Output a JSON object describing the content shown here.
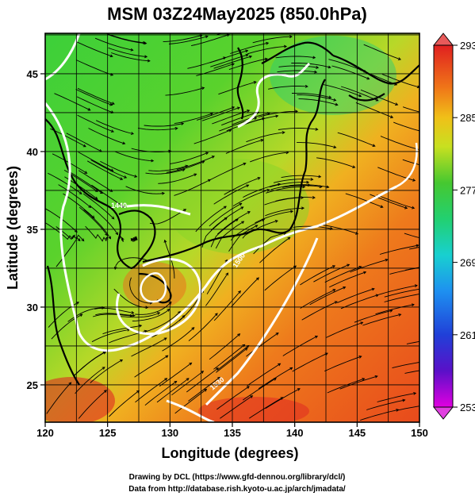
{
  "title": "MSM 03Z24May2025 (850.0hPa)",
  "x_axis": {
    "label": "Longitude (degrees)",
    "ticks": [
      "120",
      "125",
      "130",
      "135",
      "140",
      "145",
      "150"
    ],
    "range": [
      120,
      150
    ]
  },
  "y_axis": {
    "label": "Latitude  (degrees)",
    "ticks": [
      "25",
      "30",
      "35",
      "40",
      "45"
    ],
    "range": [
      22.6,
      47.6
    ]
  },
  "colorbar": {
    "tick_labels": [
      "293",
      "285",
      "277",
      "269",
      "261",
      "253"
    ],
    "range": [
      253,
      293
    ],
    "colors": [
      "#e000e0",
      "#5a10c8",
      "#1e28d8",
      "#1e7ae8",
      "#18c0e8",
      "#20d89a",
      "#28c83c",
      "#7ad828",
      "#d8e020",
      "#f0b818",
      "#f07818",
      "#e83c1e",
      "#e02020"
    ]
  },
  "contours": {
    "color": "#ffffff",
    "labels": [
      "1440",
      "1500",
      "1530"
    ]
  },
  "credits": {
    "line1": "Drawing by DCL (https://www.gfd-dennou.org/library/dcl/)",
    "line2": "Data from http://database.rish.kyoto-u.ac.jp/arch/jmadata/"
  }
}
